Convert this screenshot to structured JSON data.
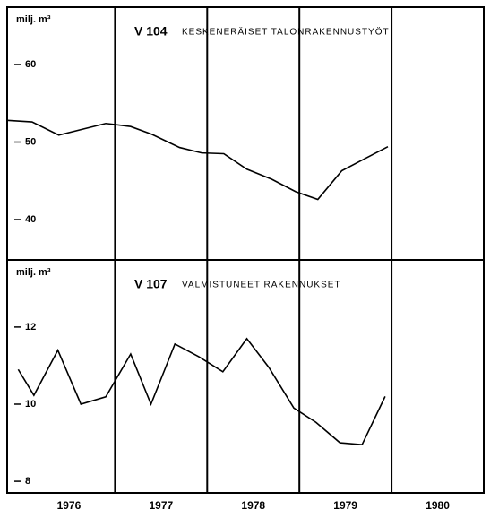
{
  "chart_data": [
    {
      "type": "line",
      "unit": "milj. m³",
      "title_code": "V 104",
      "title": "KESKENERÄISET TALONRAKENNUSTYÖT",
      "x": [
        1975.83,
        1976.1,
        1976.39,
        1976.9,
        1977.17,
        1977.4,
        1977.7,
        1977.94,
        1978.18,
        1978.43,
        1978.7,
        1978.96,
        1979.2,
        1979.46,
        1979.7,
        1979.96
      ],
      "values": [
        52.8,
        52.6,
        50.9,
        52.4,
        52.0,
        51.0,
        49.3,
        48.6,
        48.5,
        46.5,
        45.2,
        43.6,
        42.6,
        46.3,
        47.8,
        49.4
      ],
      "color": "#000000",
      "xlim": [
        1975.83,
        1981.0
      ],
      "ylim": [
        34.8,
        67.4
      ],
      "yticks": [
        40,
        50,
        60
      ],
      "year_dividers": [
        1977,
        1978,
        1979,
        1980
      ]
    },
    {
      "type": "line",
      "unit": "milj. m³",
      "title_code": "V 107",
      "title": "VALMISTUNEET RAKENNUKSET",
      "x": [
        1975.95,
        1976.12,
        1976.38,
        1976.63,
        1976.9,
        1977.17,
        1977.39,
        1977.65,
        1977.91,
        1978.17,
        1978.43,
        1978.67,
        1978.94,
        1979.18,
        1979.44,
        1979.68,
        1979.93
      ],
      "values": [
        10.9,
        10.23,
        11.4,
        10.0,
        10.19,
        11.3,
        10.0,
        11.56,
        11.23,
        10.84,
        11.7,
        10.95,
        9.9,
        9.53,
        9.0,
        8.95,
        10.2
      ],
      "color": "#000000",
      "xlim": [
        1975.83,
        1981.0
      ],
      "ylim": [
        7.7,
        13.74
      ],
      "yticks": [
        8,
        10,
        12
      ],
      "year_dividers": [
        1977,
        1978,
        1979,
        1980
      ],
      "xticks": [
        {
          "value": 1976.5,
          "label": "1976"
        },
        {
          "value": 1977.5,
          "label": "1977"
        },
        {
          "value": 1978.5,
          "label": "1978"
        },
        {
          "value": 1979.5,
          "label": "1979"
        },
        {
          "value": 1980.5,
          "label": "1980"
        }
      ]
    }
  ]
}
